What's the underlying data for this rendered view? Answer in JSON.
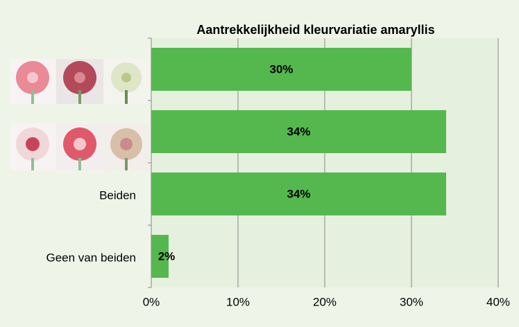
{
  "chart_data": {
    "type": "bar",
    "orientation": "horizontal",
    "title": "Aantrekkelijkheid kleurvariatie amaryllis",
    "categories": [
      null,
      null,
      "Beiden",
      "Geen van beiden"
    ],
    "values": [
      30,
      34,
      34,
      2
    ],
    "value_labels": [
      "30%",
      "34%",
      "34%",
      "2%"
    ],
    "color": "#55b84f",
    "xlim": [
      0,
      40
    ],
    "xticks": [
      {
        "value": 0,
        "label": "0%"
      },
      {
        "value": 10,
        "label": "10%"
      },
      {
        "value": 20,
        "label": "20%"
      },
      {
        "value": 30,
        "label": "30%"
      },
      {
        "value": 40,
        "label": "40%"
      }
    ],
    "grid": true
  }
}
